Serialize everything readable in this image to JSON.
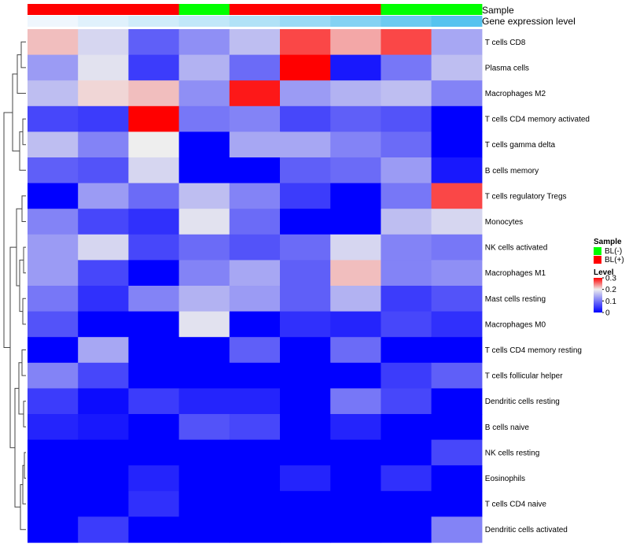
{
  "chart_data": {
    "type": "heatmap",
    "annotation_track_labels": {
      "sample": "Sample",
      "gene": "Gene expression level"
    },
    "sample_groups": [
      "BL(+)",
      "BL(+)",
      "BL(+)",
      "BL(-)",
      "BL(+)",
      "BL(+)",
      "BL(+)",
      "BL(-)",
      "BL(-)"
    ],
    "gene_expression_levels": [
      0.0,
      0.1,
      0.2,
      0.3,
      0.4,
      0.55,
      0.7,
      0.85,
      1.0
    ],
    "rows": [
      "T cells CD8",
      "Plasma cells",
      "Macrophages M2",
      "T cells CD4 memory activated",
      "T cells gamma delta",
      "B cells memory",
      "T cells regulatory  Tregs",
      "Monocytes",
      "NK cells activated",
      "Macrophages M1",
      "Mast cells resting",
      "Macrophages M0",
      "T cells CD4 memory resting",
      "T cells follicular helper",
      "Dendritic cells resting",
      "B cells naive",
      "NK cells resting",
      "Eosinophils",
      "T cells CD4 naive",
      "Dendritic cells activated"
    ],
    "values": [
      [
        0.22,
        0.18,
        0.08,
        0.12,
        0.16,
        0.27,
        0.23,
        0.27,
        0.14
      ],
      [
        0.13,
        0.19,
        0.05,
        0.15,
        0.09,
        0.3,
        0.02,
        0.1,
        0.16
      ],
      [
        0.16,
        0.21,
        0.22,
        0.12,
        0.29,
        0.13,
        0.15,
        0.16,
        0.11
      ],
      [
        0.06,
        0.05,
        0.3,
        0.1,
        0.11,
        0.06,
        0.08,
        0.07,
        0.0
      ],
      [
        0.16,
        0.11,
        0.2,
        0.0,
        0.14,
        0.14,
        0.11,
        0.09,
        0.0
      ],
      [
        0.08,
        0.07,
        0.18,
        0.0,
        0.0,
        0.08,
        0.09,
        0.13,
        0.02
      ],
      [
        0.0,
        0.13,
        0.09,
        0.16,
        0.11,
        0.05,
        0.0,
        0.1,
        0.27
      ],
      [
        0.11,
        0.06,
        0.04,
        0.19,
        0.09,
        0.0,
        0.0,
        0.16,
        0.18
      ],
      [
        0.13,
        0.18,
        0.06,
        0.09,
        0.07,
        0.09,
        0.18,
        0.11,
        0.1
      ],
      [
        0.13,
        0.06,
        0.0,
        0.11,
        0.14,
        0.08,
        0.22,
        0.11,
        0.12
      ],
      [
        0.1,
        0.04,
        0.11,
        0.15,
        0.13,
        0.08,
        0.15,
        0.05,
        0.07
      ],
      [
        0.07,
        0.0,
        0.0,
        0.19,
        0.0,
        0.04,
        0.03,
        0.06,
        0.04
      ],
      [
        0.0,
        0.14,
        0.0,
        0.0,
        0.08,
        0.0,
        0.09,
        0.0,
        0.0
      ],
      [
        0.11,
        0.06,
        0.0,
        0.0,
        0.0,
        0.0,
        0.0,
        0.05,
        0.08
      ],
      [
        0.05,
        0.01,
        0.05,
        0.03,
        0.03,
        0.0,
        0.1,
        0.06,
        0.0
      ],
      [
        0.03,
        0.02,
        0.0,
        0.07,
        0.06,
        0.0,
        0.03,
        0.0,
        0.0
      ],
      [
        0.0,
        0.0,
        0.0,
        0.0,
        0.0,
        0.0,
        0.0,
        0.0,
        0.06
      ],
      [
        0.0,
        0.0,
        0.03,
        0.0,
        0.0,
        0.03,
        0.0,
        0.04,
        0.0
      ],
      [
        0.0,
        0.0,
        0.04,
        0.0,
        0.0,
        0.0,
        0.0,
        0.0,
        0.0
      ],
      [
        0.0,
        0.05,
        0.0,
        0.0,
        0.0,
        0.0,
        0.0,
        0.0,
        0.11
      ]
    ],
    "legend": {
      "sample_title": "Sample",
      "sample_items": [
        {
          "label": "BL(-)",
          "color": "#00ff00"
        },
        {
          "label": "BL(+)",
          "color": "#ff0000"
        }
      ],
      "level_title": "Level",
      "level_ticks": [
        {
          "value": 0.3,
          "label": "0.3"
        },
        {
          "value": 0.2,
          "label": "0.2"
        },
        {
          "value": 0.1,
          "label": "0.1"
        },
        {
          "value": 0.0,
          "label": "0"
        }
      ]
    },
    "color_scale": {
      "min": 0.0,
      "mid": 0.2,
      "max": 0.3,
      "low": "#0000ff",
      "mid_color": "#eeeeee",
      "high": "#ff0000"
    },
    "gene_scale": {
      "low": "#eff6fd",
      "high": "#55c3ef"
    },
    "dendrogram": "row clustering tree on left"
  }
}
